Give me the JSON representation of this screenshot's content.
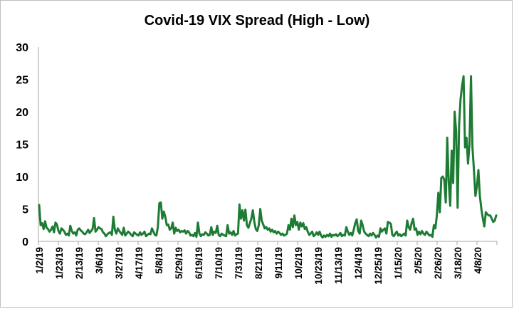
{
  "chart_data": {
    "type": "line",
    "title": "Covid-19 VIX Spread (High - Low)",
    "xlabel": "",
    "ylabel": "",
    "ylim": [
      0,
      30
    ],
    "yticks": [
      "0",
      "5",
      "10",
      "15",
      "20",
      "25",
      "30"
    ],
    "xtick_labels": [
      "1/2/19",
      "1/23/19",
      "2/13/19",
      "3/6/19",
      "3/27/19",
      "4/17/19",
      "5/8/19",
      "5/29/19",
      "6/19/19",
      "7/10/19",
      "7/31/19",
      "8/21/19",
      "9/11/19",
      "10/2/19",
      "10/23/19",
      "11/13/19",
      "12/4/19",
      "12/25/19",
      "1/15/20",
      "2/5/20",
      "2/26/20",
      "3/18/20",
      "4/8/20"
    ],
    "grid": false,
    "legend": "none",
    "line_color": "#1e7b34",
    "series": [
      {
        "values": [
          5.6,
          2.5,
          2.8,
          1.9,
          3.1,
          2.1,
          1.9,
          1.5,
          1.8,
          2.3,
          1.4,
          2.9,
          2.6,
          1.6,
          1.2,
          2.0,
          1.8,
          1.5,
          1.0,
          1.2,
          0.9,
          2.4,
          1.6,
          1.2,
          1.4,
          0.9,
          1.8,
          2.0,
          1.7,
          1.5,
          1.2,
          1.1,
          1.4,
          1.8,
          1.3,
          1.6,
          1.9,
          3.6,
          1.5,
          1.8,
          2.2,
          2.0,
          1.9,
          1.4,
          1.2,
          0.8,
          1.1,
          1.3,
          1.4,
          1.0,
          3.8,
          1.8,
          1.2,
          2.0,
          1.6,
          1.3,
          1.0,
          2.1,
          0.9,
          1.2,
          1.5,
          1.3,
          1.0,
          0.8,
          1.4,
          1.2,
          1.0,
          0.9,
          1.4,
          1.0,
          1.2,
          1.5,
          0.8,
          1.0,
          1.2,
          1.1,
          2.0,
          1.5,
          1.0,
          0.9,
          2.2,
          5.9,
          6.0,
          3.5,
          4.6,
          3.8,
          2.5,
          2.6,
          1.8,
          2.0,
          2.9,
          1.2,
          2.1,
          1.6,
          1.8,
          1.4,
          1.6,
          1.5,
          1.7,
          1.2,
          1.6,
          1.4,
          0.9,
          1.0,
          0.8,
          1.3,
          0.7,
          2.9,
          1.2,
          0.8,
          1.1,
          1.0,
          1.4,
          1.2,
          0.9,
          1.0,
          2.2,
          1.0,
          1.5,
          1.3,
          2.4,
          1.0,
          0.8,
          1.2,
          1.0,
          0.9,
          0.8,
          2.5,
          1.2,
          1.4,
          1.0,
          1.6,
          0.9,
          1.1,
          1.2,
          5.7,
          3.5,
          4.8,
          3.2,
          4.9,
          2.5,
          2.1,
          2.8,
          3.5,
          4.8,
          3.0,
          1.9,
          1.6,
          2.5,
          5.0,
          3.2,
          2.6,
          2.0,
          2.2,
          1.8,
          2.0,
          1.5,
          1.8,
          1.4,
          1.6,
          1.2,
          1.5,
          1.3,
          1.0,
          1.2,
          0.9,
          1.0,
          1.2,
          2.5,
          1.8,
          3.5,
          2.2,
          4.0,
          2.5,
          3.0,
          1.8,
          2.9,
          2.3,
          2.8,
          1.9,
          2.2,
          1.5,
          1.0,
          1.2,
          1.5,
          0.8,
          1.0,
          1.4,
          1.0,
          1.5,
          0.9,
          0.6,
          0.9,
          0.7,
          1.0,
          0.8,
          1.2,
          0.7,
          1.0,
          0.9,
          1.1,
          0.8,
          1.0,
          1.3,
          0.8,
          1.0,
          0.9,
          2.2,
          1.5,
          1.0,
          1.3,
          0.9,
          1.8,
          2.8,
          3.4,
          1.6,
          1.2,
          3.2,
          2.5,
          1.5,
          1.2,
          1.0,
          0.8,
          1.2,
          0.9,
          1.3,
          1.0,
          0.6,
          0.9,
          0.7,
          2.0,
          1.5,
          1.8,
          2.0,
          1.2,
          3.0,
          2.9,
          2.7,
          1.0,
          0.8,
          1.2,
          1.5,
          0.9,
          1.1,
          0.8,
          1.0,
          1.2,
          0.9,
          3.2,
          2.2,
          1.8,
          2.8,
          3.5,
          1.8,
          2.0,
          1.0,
          1.5,
          1.1,
          1.6,
          1.2,
          1.0,
          1.5,
          1.2,
          0.9,
          1.0,
          0.7,
          2.5,
          2.0,
          4.0,
          7.5,
          4.5,
          9.8,
          10.0,
          9.5,
          6.0,
          16.0,
          9.2,
          5.5,
          14.0,
          9.0,
          20.0,
          17.0,
          5.2,
          18.0,
          22.0,
          24.0,
          25.5,
          14.5,
          16.0,
          12.0,
          15.0,
          25.5,
          14.5,
          11.0,
          7.0,
          8.5,
          11.0,
          7.0,
          5.0,
          3.5,
          2.3,
          4.5,
          4.2,
          4.0,
          4.0,
          3.5,
          3.0,
          3.2,
          4.0
        ]
      }
    ]
  }
}
